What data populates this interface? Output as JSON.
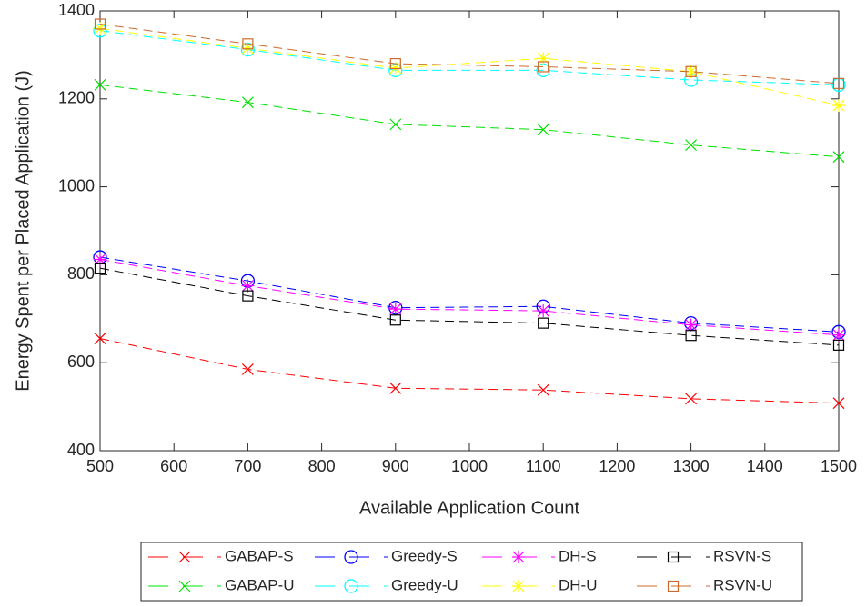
{
  "chart_data": {
    "type": "line",
    "xlabel": "Available Application Count",
    "ylabel": "Energy Spent per Placed Application (J)",
    "x": [
      500,
      700,
      900,
      1100,
      1300,
      1500
    ],
    "xlim": [
      500,
      1500
    ],
    "xticks": [
      500,
      600,
      700,
      800,
      900,
      1000,
      1100,
      1200,
      1300,
      1400,
      1500
    ],
    "ylim": [
      400,
      1400
    ],
    "yticks": [
      400,
      600,
      800,
      1000,
      1200,
      1400
    ],
    "series": [
      {
        "name": "GABAP-S",
        "color": "#ff0000",
        "marker": "x",
        "values": [
          655,
          585,
          542,
          538,
          518,
          508
        ]
      },
      {
        "name": "GABAP-U",
        "color": "#00e000",
        "marker": "x",
        "values": [
          1232,
          1192,
          1142,
          1130,
          1095,
          1068
        ]
      },
      {
        "name": "Greedy-S",
        "color": "#0000ff",
        "marker": "o",
        "values": [
          840,
          786,
          725,
          728,
          690,
          670
        ]
      },
      {
        "name": "Greedy-U",
        "color": "#00ffff",
        "marker": "o",
        "values": [
          1355,
          1312,
          1265,
          1265,
          1243,
          1232
        ]
      },
      {
        "name": "DH-S",
        "color": "#ff00ff",
        "marker": "*",
        "values": [
          835,
          775,
          722,
          718,
          686,
          663
        ]
      },
      {
        "name": "DH-U",
        "color": "#ffff00",
        "marker": "*",
        "values": [
          1360,
          1315,
          1270,
          1292,
          1262,
          1185
        ]
      },
      {
        "name": "RSVN-S",
        "color": "#000000",
        "marker": "s",
        "values": [
          815,
          752,
          697,
          690,
          662,
          640
        ]
      },
      {
        "name": "RSVN-U",
        "color": "#cc6a2c",
        "marker": "s",
        "values": [
          1370,
          1325,
          1280,
          1273,
          1262,
          1235
        ]
      }
    ]
  }
}
